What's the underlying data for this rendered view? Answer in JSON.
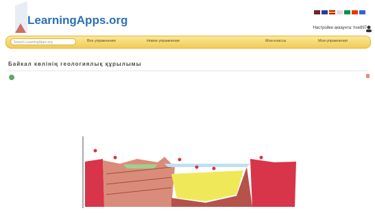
{
  "header": {
    "logo": "LearningApps.org",
    "account": "Настройки аккаунта: hse897"
  },
  "nav": {
    "search_placeholder": "Search LearningApps.org",
    "items": [
      "Все упражнения",
      "Новое упражнение",
      "Мои классы",
      "Мои упражнения"
    ]
  },
  "page": {
    "title": "Байкал көлінің геологиялық құрылымы"
  }
}
